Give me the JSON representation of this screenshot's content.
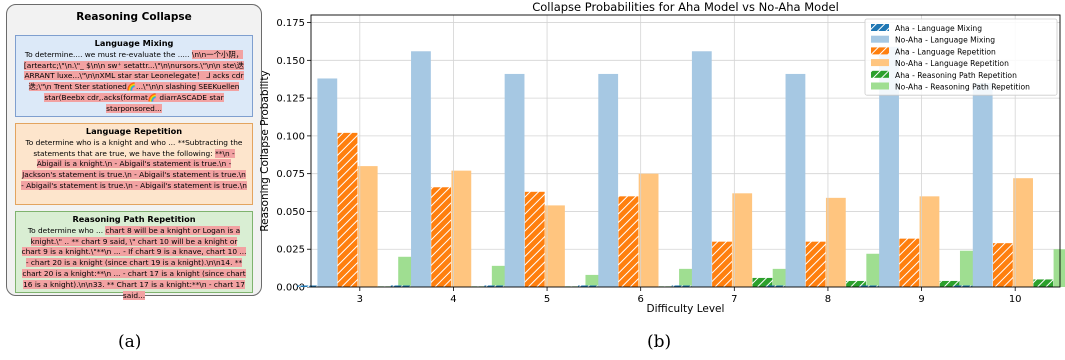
{
  "panel": {
    "title": "Reasoning Collapse",
    "caption": "(a)",
    "sections": [
      {
        "title": "Language Mixing",
        "plain": "To determine.... we must re-evaluate the .....",
        "highlight": "\\n\\n一个小阴，[arteartc;\\\"\\n.\\\"_ $\\n\\n sw⁺ setattr...\\\"\\n\\nursors.\\\"\\n\\n ste\\迭ARRANT luxe...\\\"\\n\\nXML star star Leonelegate！ ⅃ acks cdr 迭;\\\"\\n Trent Ster stationed🌈...\\\"\\n\\n slashing SEEKuellen star(Beebx cdr,.acks(format🌈 diarrASCADE star starponsored..."
      },
      {
        "title": "Language Repetition",
        "plain": "To determine who is a knight and who ... **Subtracting the statements that are true, we have the following:",
        "highlight": "**\\n - Abigail is a knight.\\n - Abigail's statement is true.\\n - Jackson's statement is true.\\n - Abigail's statement is true.\\n - Abigail's statement is true.\\n - Abigail's statement is true.\\n"
      },
      {
        "title": "Reasoning Path Repetition",
        "plain": "To determine who ...",
        "highlight": "chart 8 will be a knight or Logan is a knight.\\\" .. ** chart 9 said, \\\" chart 10 will be a knight or chart 9 is a knight.\\\"**\\n ... - If chart 9 is a knave, chart 10 ... - chart 20 is a knight (since chart 19 is a knight).\\n\\n14. ** chart 20 is a knight:**\\n ... - chart 17 is a knight (since chart 16 is a knight).\\n\\n33. ** Chart 17 is a knight:**\\n - chart 17 said..."
      }
    ]
  },
  "chart_caption": "(b)",
  "chart_data": {
    "type": "bar",
    "title": "Collapse Probabilities for Aha Model vs No-Aha Model",
    "xlabel": "Difficulty Level",
    "ylabel": "Reasoning Collapse Probability",
    "categories": [
      "3",
      "4",
      "5",
      "6",
      "7",
      "8",
      "9",
      "10"
    ],
    "ylim": [
      0,
      0.18
    ],
    "yticks": [
      "0.000",
      "0.025",
      "0.050",
      "0.075",
      "0.100",
      "0.125",
      "0.150",
      "0.175"
    ],
    "ytick_values": [
      0,
      0.025,
      0.05,
      0.075,
      0.1,
      0.125,
      0.15,
      0.175
    ],
    "grid": true,
    "legend_position": "top-right",
    "series": [
      {
        "name": "Aha - Language Mixing",
        "color": "#1f77b4",
        "hatch": true,
        "values": [
          0.001,
          0.001,
          0.001,
          0.001,
          0.001,
          0.001,
          0.001,
          0.001
        ]
      },
      {
        "name": "No-Aha - Language Mixing",
        "color": "#a6c8e3",
        "hatch": false,
        "values": [
          0.138,
          0.156,
          0.141,
          0.141,
          0.156,
          0.141,
          0.159,
          0.135
        ]
      },
      {
        "name": "Aha - Language Repetition",
        "color": "#ff7f0e",
        "hatch": true,
        "values": [
          0.102,
          0.066,
          0.063,
          0.06,
          0.03,
          0.03,
          0.032,
          0.029
        ]
      },
      {
        "name": "No-Aha - Language Repetition",
        "color": "#ffc57f",
        "hatch": false,
        "values": [
          0.08,
          0.077,
          0.054,
          0.075,
          0.062,
          0.059,
          0.06,
          0.072
        ]
      },
      {
        "name": "Aha - Reasoning Path Repetition",
        "color": "#2ca02c",
        "hatch": true,
        "values": [
          0.0,
          0.0,
          0.0,
          0.0,
          0.006,
          0.004,
          0.004,
          0.005
        ]
      },
      {
        "name": "No-Aha - Reasoning Path Repetition",
        "color": "#9fde91",
        "hatch": false,
        "values": [
          0.02,
          0.014,
          0.008,
          0.012,
          0.012,
          0.022,
          0.024,
          0.025
        ]
      }
    ]
  }
}
